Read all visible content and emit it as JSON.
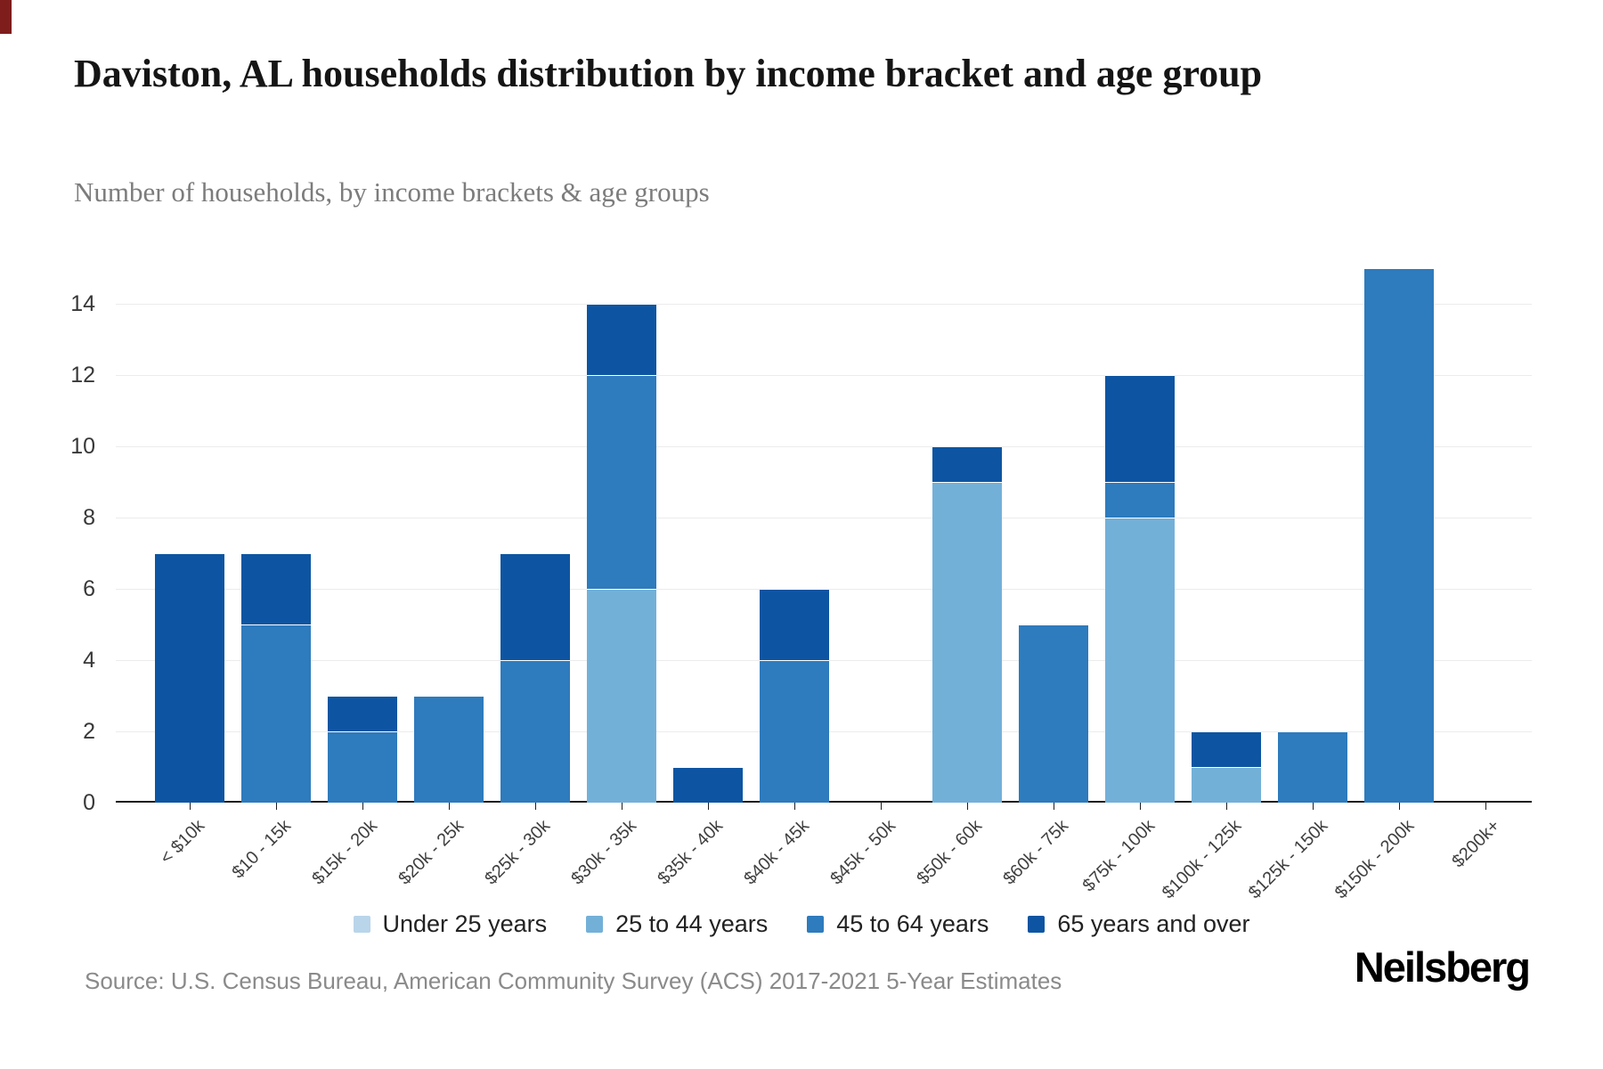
{
  "page": {
    "title": "Daviston, AL households distribution by income bracket and age group",
    "subtitle": "Number of households, by income brackets & age groups",
    "source": "Source: U.S. Census Bureau, American Community Survey (ACS) 2017-2021 5-Year Estimates",
    "logo": "Neilsberg"
  },
  "colors": {
    "corner_mark": "#7f1d1d",
    "axis": "#1f1f1f",
    "gridline": "#ececec"
  },
  "chart_data": {
    "type": "bar",
    "stacked": true,
    "title": "Daviston, AL households distribution by income bracket and age group",
    "subtitle": "Number of households, by income brackets & age groups",
    "xlabel": "",
    "ylabel": "",
    "ylim": [
      0,
      15
    ],
    "yticks": [
      0,
      2,
      4,
      6,
      8,
      10,
      12,
      14
    ],
    "grid": true,
    "legend_position": "bottom",
    "categories": [
      "< $10k",
      "$10 - 15k",
      "$15k - 20k",
      "$20k - 25k",
      "$25k - 30k",
      "$30k - 35k",
      "$35k - 40k",
      "$40k - 45k",
      "$45k - 50k",
      "$50k - 60k",
      "$60k - 75k",
      "$75k - 100k",
      "$100k - 125k",
      "$125k - 150k",
      "$150k - 200k",
      "$200k+"
    ],
    "series": [
      {
        "name": "Under 25 years",
        "color": "#b9d5ea",
        "values": [
          0,
          0,
          0,
          0,
          0,
          0,
          0,
          0,
          0,
          0,
          0,
          0,
          0,
          0,
          0,
          0
        ]
      },
      {
        "name": "25 to 44 years",
        "color": "#73b0d8",
        "values": [
          0,
          0,
          0,
          0,
          0,
          6,
          0,
          0,
          0,
          9,
          0,
          8,
          1,
          0,
          0,
          0
        ]
      },
      {
        "name": "45 to 64 years",
        "color": "#2e7bbd",
        "values": [
          0,
          5,
          2,
          3,
          4,
          6,
          0,
          4,
          0,
          0,
          5,
          1,
          0,
          2,
          15,
          0
        ]
      },
      {
        "name": "65 years and over",
        "color": "#0d55a2",
        "values": [
          7,
          2,
          1,
          0,
          3,
          2,
          1,
          2,
          0,
          1,
          0,
          3,
          1,
          0,
          0,
          0
        ]
      }
    ],
    "totals": [
      7,
      7,
      3,
      3,
      7,
      14,
      1,
      6,
      0,
      10,
      5,
      12,
      2,
      2,
      15,
      0
    ]
  }
}
